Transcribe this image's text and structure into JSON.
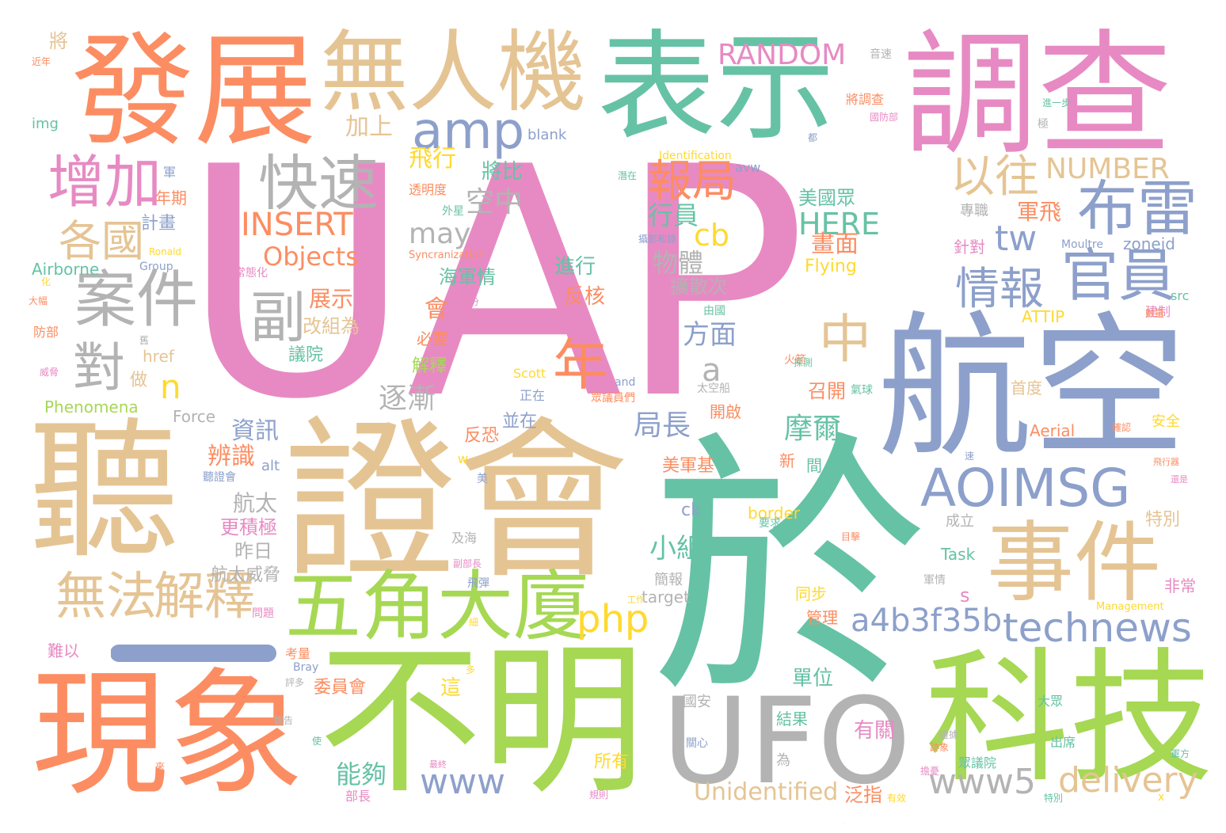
{
  "palette": {
    "pink": "#e78ac3",
    "teal": "#66c2a5",
    "orange": "#fc8d62",
    "tan": "#e5c494",
    "blue": "#8da0cb",
    "green": "#a6d854",
    "gray": "#b3b3b3",
    "yellow": "#ffd92f"
  },
  "words": [
    {
      "text": "UAP",
      "color": "pink"
    },
    {
      "text": "於",
      "color": "teal"
    },
    {
      "text": "聽",
      "color": "tan"
    },
    {
      "text": "證會",
      "color": "tan"
    },
    {
      "text": "航空",
      "color": "blue"
    },
    {
      "text": "不明",
      "color": "green"
    },
    {
      "text": "現象",
      "color": "orange"
    },
    {
      "text": "科技",
      "color": "green"
    },
    {
      "text": "表示",
      "color": "teal"
    },
    {
      "text": "調查",
      "color": "pink"
    },
    {
      "text": "發展",
      "color": "orange"
    },
    {
      "text": "無人機",
      "color": "tan"
    },
    {
      "text": "UFO",
      "color": "gray"
    },
    {
      "text": "事件",
      "color": "tan"
    },
    {
      "text": "AOIMSG",
      "color": "blue"
    },
    {
      "text": "五角",
      "color": "green"
    },
    {
      "text": "大廈",
      "color": "green"
    },
    {
      "text": "案件",
      "color": "gray"
    },
    {
      "text": "增加",
      "color": "pink"
    },
    {
      "text": "快速",
      "color": "gray"
    },
    {
      "text": "布雷",
      "color": "blue"
    },
    {
      "text": "官員",
      "color": "blue"
    },
    {
      "text": "情報",
      "color": "blue"
    },
    {
      "text": "以往",
      "color": "tan"
    },
    {
      "text": "無法",
      "color": "tan"
    },
    {
      "text": "解釋",
      "color": "tan"
    },
    {
      "text": "technews",
      "color": "blue"
    },
    {
      "text": "a4b3f35b",
      "color": "blue"
    },
    {
      "text": "amp",
      "color": "blue"
    },
    {
      "text": "副",
      "color": "gray"
    },
    {
      "text": "對",
      "color": "gray"
    },
    {
      "text": "中",
      "color": "tan"
    },
    {
      "text": "年",
      "color": "orange"
    },
    {
      "text": "各國",
      "color": "tan"
    },
    {
      "text": "報局",
      "color": "orange"
    },
    {
      "text": "RANDOM",
      "color": "pink"
    },
    {
      "text": "INSERT",
      "color": "orange"
    },
    {
      "text": "Objects",
      "color": "orange"
    },
    {
      "text": "HERE",
      "color": "teal"
    },
    {
      "text": "NUMBER",
      "color": "tan"
    },
    {
      "text": "tw",
      "color": "blue"
    },
    {
      "text": "www5",
      "color": "gray"
    },
    {
      "text": "delivery",
      "color": "tan"
    },
    {
      "text": "www",
      "color": "blue"
    },
    {
      "text": "php",
      "color": "yellow"
    },
    {
      "text": "Unidentified",
      "color": "tan"
    },
    {
      "text": "cb",
      "color": "yellow"
    },
    {
      "text": "n",
      "color": "yellow"
    },
    {
      "text": "a",
      "color": "gray"
    },
    {
      "text": "may",
      "color": "gray"
    },
    {
      "text": "小組",
      "color": "teal"
    },
    {
      "text": "摩爾",
      "color": "teal"
    },
    {
      "text": "局長",
      "color": "blue"
    },
    {
      "text": "逐漸",
      "color": "gray"
    },
    {
      "text": "方面",
      "color": "blue"
    },
    {
      "text": "物體",
      "color": "gray"
    },
    {
      "text": "行員",
      "color": "teal"
    },
    {
      "text": "空中",
      "color": "gray"
    },
    {
      "text": "飛行",
      "color": "yellow"
    },
    {
      "text": "加上",
      "color": "tan"
    },
    {
      "text": "將比",
      "color": "teal"
    },
    {
      "text": "海軍情",
      "color": "teal"
    },
    {
      "text": "進行",
      "color": "teal"
    },
    {
      "text": "反核",
      "color": "orange"
    },
    {
      "text": "展示",
      "color": "orange"
    },
    {
      "text": "改組為",
      "color": "tan"
    },
    {
      "text": "資訊",
      "color": "blue"
    },
    {
      "text": "辨識",
      "color": "orange"
    },
    {
      "text": "航太",
      "color": "gray"
    },
    {
      "text": "更積極",
      "color": "pink"
    },
    {
      "text": "昨日",
      "color": "gray"
    },
    {
      "text": "航太威脅",
      "color": "gray"
    },
    {
      "text": "無",
      "color": "tan"
    },
    {
      "text": "美國眾",
      "color": "teal"
    },
    {
      "text": "畫面",
      "color": "orange"
    },
    {
      "text": "軍飛",
      "color": "orange"
    },
    {
      "text": "擴散次",
      "color": "gray"
    },
    {
      "text": "zoneid",
      "color": "blue"
    },
    {
      "text": "Flying",
      "color": "yellow"
    },
    {
      "text": "ATTIP",
      "color": "yellow"
    },
    {
      "text": "Aerial",
      "color": "orange"
    },
    {
      "text": "Airborne",
      "color": "teal"
    },
    {
      "text": "Phenomena",
      "color": "green"
    },
    {
      "text": "Force",
      "color": "gray"
    },
    {
      "text": "href",
      "color": "tan"
    },
    {
      "text": "alt",
      "color": "blue"
    },
    {
      "text": "img",
      "color": "teal"
    },
    {
      "text": "blank",
      "color": "blue"
    },
    {
      "text": "avw",
      "color": "blue"
    },
    {
      "text": "border",
      "color": "yellow"
    },
    {
      "text": "ck",
      "color": "blue"
    },
    {
      "text": "target",
      "color": "gray"
    },
    {
      "text": "Task",
      "color": "teal"
    },
    {
      "text": "src",
      "color": "teal"
    },
    {
      "text": "Scott",
      "color": "yellow"
    },
    {
      "text": "Group",
      "color": "blue"
    },
    {
      "text": "Ronald",
      "color": "yellow"
    },
    {
      "text": "Moultre",
      "color": "blue"
    },
    {
      "text": "Identification",
      "color": "yellow"
    },
    {
      "text": "Syncranization",
      "color": "orange"
    },
    {
      "text": "Management",
      "color": "yellow"
    },
    {
      "text": "and",
      "color": "blue"
    },
    {
      "text": "Bray",
      "color": "blue"
    },
    {
      "text": "s",
      "color": "pink"
    },
    {
      "text": "w",
      "color": "yellow"
    },
    {
      "text": "x",
      "color": "yellow"
    },
    {
      "text": "將",
      "color": "tan"
    },
    {
      "text": "近年",
      "color": "orange"
    },
    {
      "text": "軍",
      "color": "blue"
    },
    {
      "text": "年期",
      "color": "orange"
    },
    {
      "text": "計畫",
      "color": "blue"
    },
    {
      "text": "常態化",
      "color": "pink"
    },
    {
      "text": "化",
      "color": "yellow"
    },
    {
      "text": "大幅",
      "color": "orange"
    },
    {
      "text": "防部",
      "color": "orange"
    },
    {
      "text": "會",
      "color": "orange"
    },
    {
      "text": "議院",
      "color": "teal"
    },
    {
      "text": "必要",
      "color": "orange"
    },
    {
      "text": "解釋",
      "color": "green"
    },
    {
      "text": "做",
      "color": "tan"
    },
    {
      "text": "正在",
      "color": "blue"
    },
    {
      "text": "並在",
      "color": "blue"
    },
    {
      "text": "反恐",
      "color": "orange"
    },
    {
      "text": "美",
      "color": "blue"
    },
    {
      "text": "及海",
      "color": "gray"
    },
    {
      "text": "飛彈",
      "color": "blue"
    },
    {
      "text": "問題",
      "color": "pink"
    },
    {
      "text": "難以",
      "color": "pink"
    },
    {
      "text": "考量",
      "color": "orange"
    },
    {
      "text": "這",
      "color": "yellow"
    },
    {
      "text": "委員會",
      "color": "orange"
    },
    {
      "text": "能夠",
      "color": "teal"
    },
    {
      "text": "部長",
      "color": "pink"
    },
    {
      "text": "所有",
      "color": "yellow"
    },
    {
      "text": "國安",
      "color": "gray"
    },
    {
      "text": "結果",
      "color": "teal"
    },
    {
      "text": "有關",
      "color": "pink"
    },
    {
      "text": "為",
      "color": "gray"
    },
    {
      "text": "泛指",
      "color": "orange"
    },
    {
      "text": "眾議院",
      "color": "teal"
    },
    {
      "text": "大眾",
      "color": "teal"
    },
    {
      "text": "出席",
      "color": "teal"
    },
    {
      "text": "單位",
      "color": "teal"
    },
    {
      "text": "同步",
      "color": "yellow"
    },
    {
      "text": "管理",
      "color": "orange"
    },
    {
      "text": "簡報",
      "color": "gray"
    },
    {
      "text": "成立",
      "color": "gray"
    },
    {
      "text": "特別",
      "color": "tan"
    },
    {
      "text": "非常",
      "color": "pink"
    },
    {
      "text": "軍情",
      "color": "gray"
    },
    {
      "text": "首度",
      "color": "tan"
    },
    {
      "text": "召開",
      "color": "orange"
    },
    {
      "text": "開啟",
      "color": "orange"
    },
    {
      "text": "新",
      "color": "orange"
    },
    {
      "text": "間",
      "color": "teal"
    },
    {
      "text": "美軍基",
      "color": "orange"
    },
    {
      "text": "針對",
      "color": "pink"
    },
    {
      "text": "專職",
      "color": "gray"
    },
    {
      "text": "將調查",
      "color": "orange"
    },
    {
      "text": "透明度",
      "color": "orange"
    },
    {
      "text": "外星",
      "color": "teal"
    },
    {
      "text": "音速",
      "color": "gray"
    },
    {
      "text": "安全",
      "color": "yellow"
    },
    {
      "text": "建制",
      "color": "pink"
    },
    {
      "text": "太空船",
      "color": "gray"
    },
    {
      "text": "火箭",
      "color": "orange"
    },
    {
      "text": "氣球",
      "color": "teal"
    },
    {
      "text": "眾議員們",
      "color": "orange"
    },
    {
      "text": "聽證會",
      "color": "blue"
    },
    {
      "text": "要求",
      "color": "teal"
    },
    {
      "text": "目擊",
      "color": "orange"
    },
    {
      "text": "工作",
      "color": "yellow"
    },
    {
      "text": "最終",
      "color": "pink"
    },
    {
      "text": "副部長",
      "color": "pink"
    },
    {
      "text": "大部分",
      "color": "pink"
    },
    {
      "text": "由國",
      "color": "teal"
    },
    {
      "text": "攝影和錄",
      "color": "blue"
    },
    {
      "text": "探測",
      "color": "teal"
    },
    {
      "text": "極",
      "color": "gray"
    },
    {
      "text": "使",
      "color": "teal"
    },
    {
      "text": "來",
      "color": "orange"
    },
    {
      "text": "規則",
      "color": "pink"
    },
    {
      "text": "國防部",
      "color": "pink"
    },
    {
      "text": "威脅",
      "color": "pink"
    },
    {
      "text": "數量",
      "color": "orange"
    },
    {
      "text": "進一步",
      "color": "teal"
    },
    {
      "text": "都",
      "color": "blue"
    },
    {
      "text": "確認",
      "color": "orange"
    },
    {
      "text": "潛在",
      "color": "teal"
    },
    {
      "text": "飛行器",
      "color": "orange"
    },
    {
      "text": "還是",
      "color": "pink"
    },
    {
      "text": "有效",
      "color": "yellow"
    },
    {
      "text": "關心",
      "color": "blue"
    },
    {
      "text": "證據",
      "color": "gray"
    },
    {
      "text": "報告",
      "color": "gray"
    },
    {
      "text": "多",
      "color": "yellow"
    },
    {
      "text": "細",
      "color": "yellow"
    },
    {
      "text": "評多",
      "color": "gray"
    },
    {
      "text": "特別",
      "color": "teal"
    },
    {
      "text": "擔憂",
      "color": "pink"
    },
    {
      "text": "跡象",
      "color": "orange"
    },
    {
      "text": "軍方",
      "color": "teal"
    },
    {
      "text": "飛",
      "color": "yellow"
    },
    {
      "text": "舊",
      "color": "gray"
    },
    {
      "text": "速",
      "color": "blue"
    },
    {
      "text": "國",
      "color": "gray"
    }
  ]
}
